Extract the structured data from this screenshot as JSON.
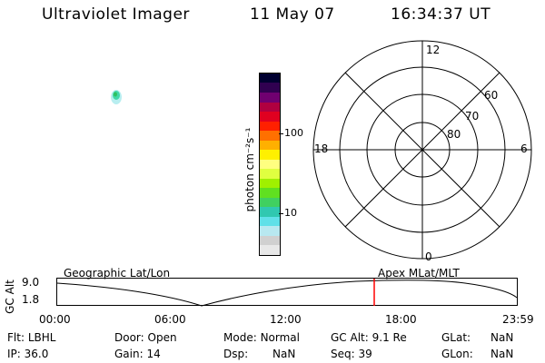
{
  "header": {
    "title": "Ultraviolet Imager",
    "date": "11 May 07",
    "time": "16:34:37 UT"
  },
  "colorbar": {
    "label": "photon cm⁻²s⁻¹",
    "ticks": [
      "100",
      "10"
    ],
    "colors": [
      "#e8e8e8",
      "#d0d0d0",
      "#b8e8f0",
      "#60e0e8",
      "#30c8b0",
      "#40d060",
      "#60e020",
      "#a0f000",
      "#e0ff40",
      "#ffff80",
      "#fff000",
      "#ffb000",
      "#ff7000",
      "#ff2000",
      "#e00020",
      "#b00040",
      "#700070",
      "#300050",
      "#000030"
    ]
  },
  "polar": {
    "mlt_labels": [
      "12",
      "18",
      "6",
      "0"
    ],
    "mlat_labels": [
      "60",
      "70",
      "80"
    ]
  },
  "timeline": {
    "yaxis_label": "GC Alt",
    "ymax": "9.0",
    "ymin": "1.8",
    "left_caption": "Geographic Lat/Lon",
    "right_caption": "Apex MLat/MLT",
    "x_ticks": [
      "00:00",
      "06:00",
      "12:00",
      "18:00",
      "23:59"
    ],
    "marker_color": "#ff0000"
  },
  "status": {
    "row1": {
      "flt_label": "Flt:",
      "flt_value": "LBHL",
      "door_label": "Door:",
      "door_value": "Open",
      "mode_label": "Mode:",
      "mode_value": "Normal",
      "gcalt_label": "GC Alt:",
      "gcalt_value": "9.1 Re",
      "glat_label": "GLat:",
      "glat_value": "NaN"
    },
    "row2": {
      "ip_label": "IP:",
      "ip_value": "36.0",
      "gain_label": "Gain:",
      "gain_value": "14",
      "dsp_label": "Dsp:",
      "dsp_value": "NaN",
      "seq_label": "Seq:",
      "seq_value": "39",
      "glon_label": "GLon:",
      "glon_value": "NaN"
    }
  }
}
